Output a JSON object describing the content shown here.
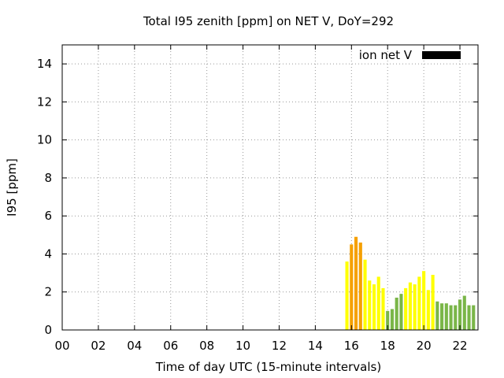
{
  "chart_data": {
    "type": "bar",
    "title": "Total I95 zenith [ppm] on NET V, DoY=292",
    "xlabel": "Time of day UTC (15-minute intervals)",
    "ylabel": "I95 [ppm]",
    "xlim": [
      0,
      23
    ],
    "ylim": [
      0,
      15
    ],
    "x_ticks": [
      "00",
      "02",
      "04",
      "06",
      "08",
      "10",
      "12",
      "14",
      "16",
      "18",
      "20",
      "22"
    ],
    "y_ticks": [
      "0",
      "2",
      "4",
      "6",
      "8",
      "10",
      "12",
      "14"
    ],
    "grid": true,
    "legend": {
      "label": "ion net V",
      "position": "top-right",
      "color": "#000000"
    },
    "bar_width_hours": 0.18,
    "colors": {
      "green": "#7ab648",
      "yellow": "#ffff00",
      "orange": "#f5a000"
    },
    "bars": [
      {
        "x": 15.75,
        "value": 3.6,
        "color": "yellow"
      },
      {
        "x": 16.0,
        "value": 4.5,
        "color": "orange"
      },
      {
        "x": 16.25,
        "value": 4.9,
        "color": "orange"
      },
      {
        "x": 16.5,
        "value": 4.6,
        "color": "orange"
      },
      {
        "x": 16.75,
        "value": 3.7,
        "color": "yellow"
      },
      {
        "x": 17.0,
        "value": 2.6,
        "color": "yellow"
      },
      {
        "x": 17.25,
        "value": 2.4,
        "color": "yellow"
      },
      {
        "x": 17.5,
        "value": 2.8,
        "color": "yellow"
      },
      {
        "x": 17.75,
        "value": 2.2,
        "color": "yellow"
      },
      {
        "x": 18.0,
        "value": 1.0,
        "color": "green"
      },
      {
        "x": 18.25,
        "value": 1.1,
        "color": "green"
      },
      {
        "x": 18.5,
        "value": 1.7,
        "color": "green"
      },
      {
        "x": 18.75,
        "value": 1.9,
        "color": "green"
      },
      {
        "x": 19.0,
        "value": 2.2,
        "color": "yellow"
      },
      {
        "x": 19.25,
        "value": 2.5,
        "color": "yellow"
      },
      {
        "x": 19.5,
        "value": 2.4,
        "color": "yellow"
      },
      {
        "x": 19.75,
        "value": 2.8,
        "color": "yellow"
      },
      {
        "x": 20.0,
        "value": 3.1,
        "color": "yellow"
      },
      {
        "x": 20.25,
        "value": 2.1,
        "color": "yellow"
      },
      {
        "x": 20.5,
        "value": 2.9,
        "color": "yellow"
      },
      {
        "x": 20.75,
        "value": 1.5,
        "color": "green"
      },
      {
        "x": 21.0,
        "value": 1.4,
        "color": "green"
      },
      {
        "x": 21.25,
        "value": 1.4,
        "color": "green"
      },
      {
        "x": 21.5,
        "value": 1.3,
        "color": "green"
      },
      {
        "x": 21.75,
        "value": 1.3,
        "color": "green"
      },
      {
        "x": 22.0,
        "value": 1.6,
        "color": "green"
      },
      {
        "x": 22.25,
        "value": 1.8,
        "color": "green"
      },
      {
        "x": 22.5,
        "value": 1.3,
        "color": "green"
      },
      {
        "x": 22.75,
        "value": 1.3,
        "color": "green"
      }
    ]
  }
}
